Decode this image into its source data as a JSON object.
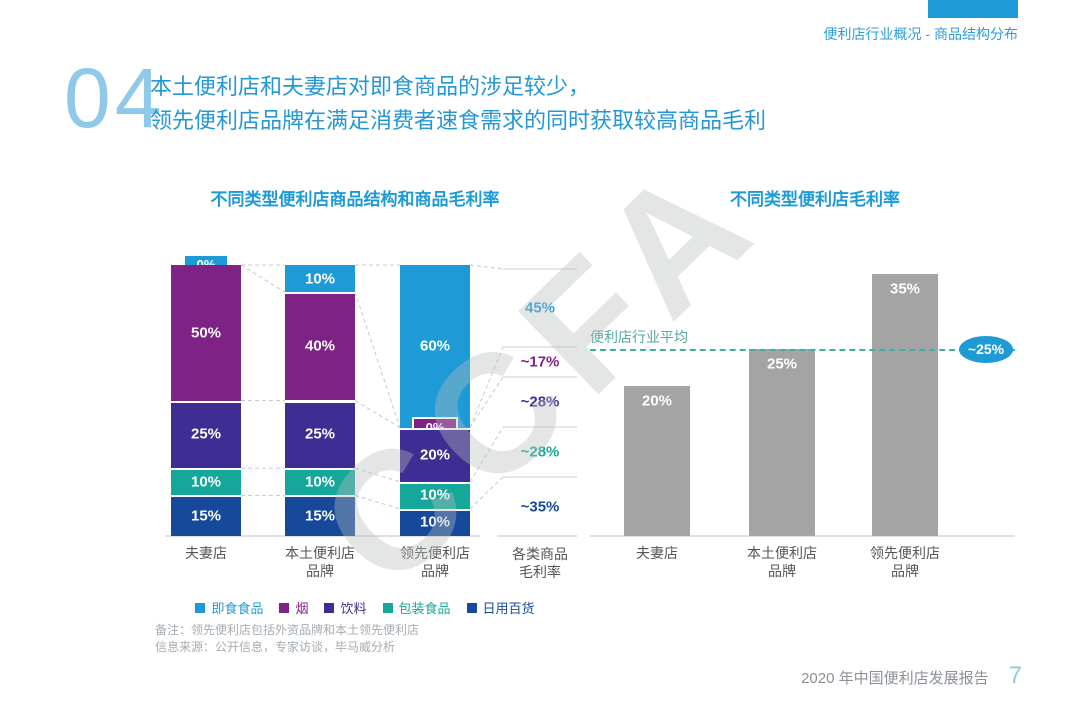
{
  "page": {
    "breadcrumb": "便利店行业概况 - 商品结构分布",
    "section_number": "04",
    "headline_line1": "本土便利店和夫妻店对即食商品的涉足较少，",
    "headline_line2": "领先便利店品牌在满足消费者速食需求的同时获取较高商品毛利",
    "note_line1": "备注：领先便利店包括外资品牌和本土领先便利店",
    "note_line2": "信息来源：公开信息，专家访谈，毕马威分析",
    "footer_title": "2020 年中国便利店发展报告",
    "page_number": "7",
    "watermark": "CCFA"
  },
  "colors": {
    "accent_blue": "#1E9BD7",
    "gray_bar": "#A4A4A4",
    "average_teal": "#3FB0A4"
  },
  "chart_data": [
    {
      "type": "bar",
      "stacked": true,
      "title": "不同类型便利店商品结构和商品毛利率",
      "unit": "%",
      "categories": [
        "夫妻店",
        "本土便利店品牌",
        "领先便利店品牌"
      ],
      "series": [
        {
          "name": "即食食品",
          "color": "#1E9BD7",
          "values": [
            0,
            10,
            60
          ]
        },
        {
          "name": "烟",
          "color": "#7E2285",
          "values": [
            50,
            40,
            0
          ]
        },
        {
          "name": "饮料",
          "color": "#3E2D92",
          "values": [
            25,
            25,
            20
          ]
        },
        {
          "name": "包装食品",
          "color": "#16A79B",
          "values": [
            10,
            10,
            10
          ]
        },
        {
          "name": "日用百货",
          "color": "#17499B",
          "values": [
            15,
            15,
            10
          ]
        }
      ],
      "margin_column": {
        "header": "各类商品毛利率",
        "values": [
          {
            "label": "45%",
            "color": "#1E9BD7"
          },
          {
            "label": "~17%",
            "color": "#7E2285"
          },
          {
            "label": "~28%",
            "color": "#3E2D92"
          },
          {
            "label": "~28%",
            "color": "#16A79B"
          },
          {
            "label": "~35%",
            "color": "#17499B"
          }
        ]
      },
      "legend_position": "bottom",
      "ylim": [
        0,
        100
      ]
    },
    {
      "type": "bar",
      "title": "不同类型便利店毛利率",
      "unit": "%",
      "categories": [
        "夫妻店",
        "本土便利店品牌",
        "领先便利店品牌"
      ],
      "values": [
        20,
        25,
        35
      ],
      "bar_color": "#A4A4A4",
      "average_line": {
        "label": "便利店行业平均",
        "value": 25,
        "value_label": "~25%",
        "color": "#3FB0A4"
      },
      "ylim": [
        0,
        40
      ]
    }
  ]
}
